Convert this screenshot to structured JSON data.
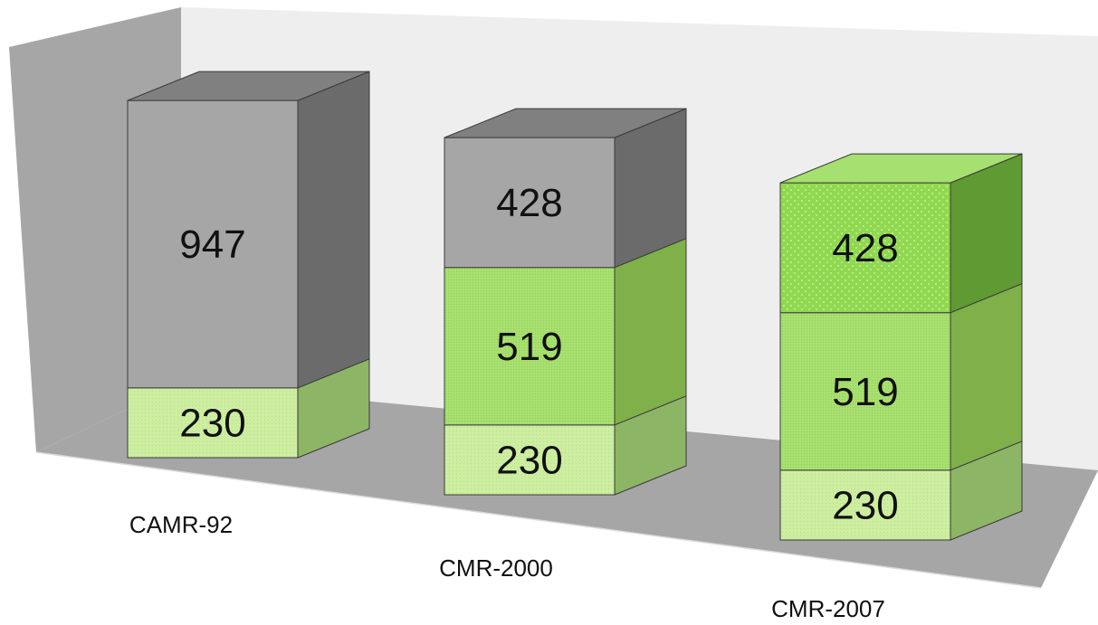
{
  "chart_data": {
    "type": "bar",
    "stacked": true,
    "style": "3d",
    "categories": [
      "CAMR-92",
      "CMR-2000",
      "CMR-2007"
    ],
    "stacks": [
      [
        {
          "value": 230,
          "label": "230",
          "kind": "pale-green"
        },
        {
          "value": 947,
          "label": "947",
          "kind": "gray"
        }
      ],
      [
        {
          "value": 230,
          "label": "230",
          "kind": "pale-green"
        },
        {
          "value": 519,
          "label": "519",
          "kind": "green"
        },
        {
          "value": 428,
          "label": "428",
          "kind": "gray"
        }
      ],
      [
        {
          "value": 230,
          "label": "230",
          "kind": "pale-green"
        },
        {
          "value": 519,
          "label": "519",
          "kind": "green"
        },
        {
          "value": 428,
          "label": "428",
          "kind": "bright-green"
        }
      ]
    ],
    "colors": {
      "pale-green": "#cdeea0",
      "green": "#a8e070",
      "bright-green": "#90d850",
      "gray": "#a6a6a6",
      "back-wall": "#eeeeee",
      "side-wall": "#a6a6a6",
      "floor": "#a6a6a6"
    },
    "title": "",
    "xlabel": "",
    "ylabel": "",
    "legend": "none",
    "grid": false
  }
}
